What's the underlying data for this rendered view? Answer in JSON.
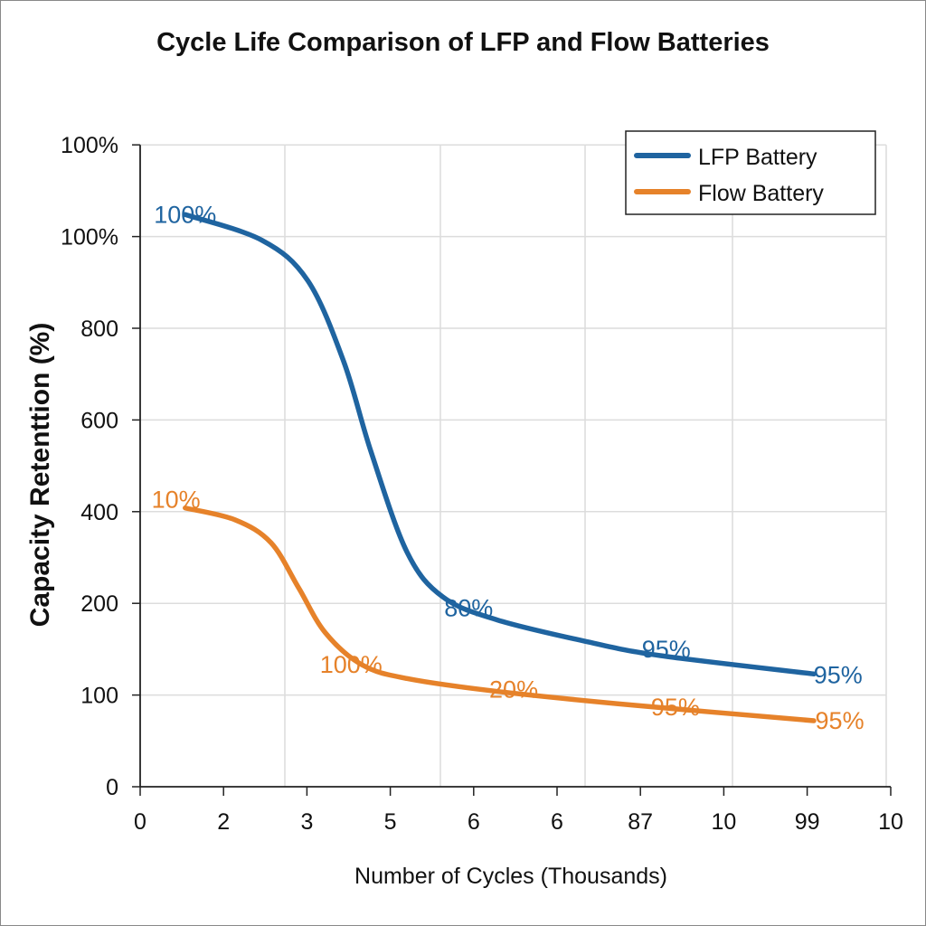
{
  "chart_data": {
    "type": "line",
    "title": "Cycle Life Comparison of LFP and Flow Batteries",
    "xlabel": "Number of Cycles (Thousands)",
    "ylabel": "Capacity Retenttion (%)",
    "x_tick_labels": [
      "0",
      "2",
      "3",
      "5",
      "6",
      "6",
      "87",
      "10",
      "99",
      "10"
    ],
    "y_tick_labels": [
      "0",
      "100",
      "200",
      "400",
      "600",
      "800",
      "100%",
      "100%"
    ],
    "note_units": "x/y below are positions along the printed tick sequence (tick index), since printed tick labels are non-uniform",
    "grid": true,
    "legend_position": "top-right",
    "series": [
      {
        "name": "LFP Battery",
        "color": "#1f64a0",
        "points": [
          [
            0.54,
            6.24
          ],
          [
            1.46,
            5.96
          ],
          [
            2.01,
            5.52
          ],
          [
            2.44,
            4.64
          ],
          [
            2.77,
            3.65
          ],
          [
            3.2,
            2.56
          ],
          [
            3.63,
            2.07
          ],
          [
            4.28,
            1.82
          ],
          [
            5.37,
            1.58
          ],
          [
            6.24,
            1.43
          ],
          [
            8.08,
            1.23
          ]
        ],
        "labels": [
          {
            "text": "100%",
            "x": 0.54,
            "y": 6.24
          },
          {
            "text": "80%",
            "x": 3.94,
            "y": 1.95
          },
          {
            "text": "95%",
            "x": 6.31,
            "y": 1.5
          },
          {
            "text": "95%",
            "x": 8.37,
            "y": 1.22
          }
        ]
      },
      {
        "name": "Flow Battery",
        "color": "#e6822a",
        "points": [
          [
            0.54,
            3.04
          ],
          [
            1.14,
            2.91
          ],
          [
            1.57,
            2.66
          ],
          [
            1.9,
            2.17
          ],
          [
            2.22,
            1.68
          ],
          [
            2.66,
            1.33
          ],
          [
            3.2,
            1.18
          ],
          [
            4.28,
            1.04
          ],
          [
            5.91,
            0.89
          ],
          [
            8.08,
            0.72
          ]
        ],
        "labels": [
          {
            "text": "10%",
            "x": 0.43,
            "y": 3.13
          },
          {
            "text": "100%",
            "x": 2.53,
            "y": 1.33
          },
          {
            "text": "20%",
            "x": 4.48,
            "y": 1.06
          },
          {
            "text": "95%",
            "x": 6.42,
            "y": 0.87
          },
          {
            "text": "95%",
            "x": 8.39,
            "y": 0.72
          }
        ]
      }
    ]
  }
}
